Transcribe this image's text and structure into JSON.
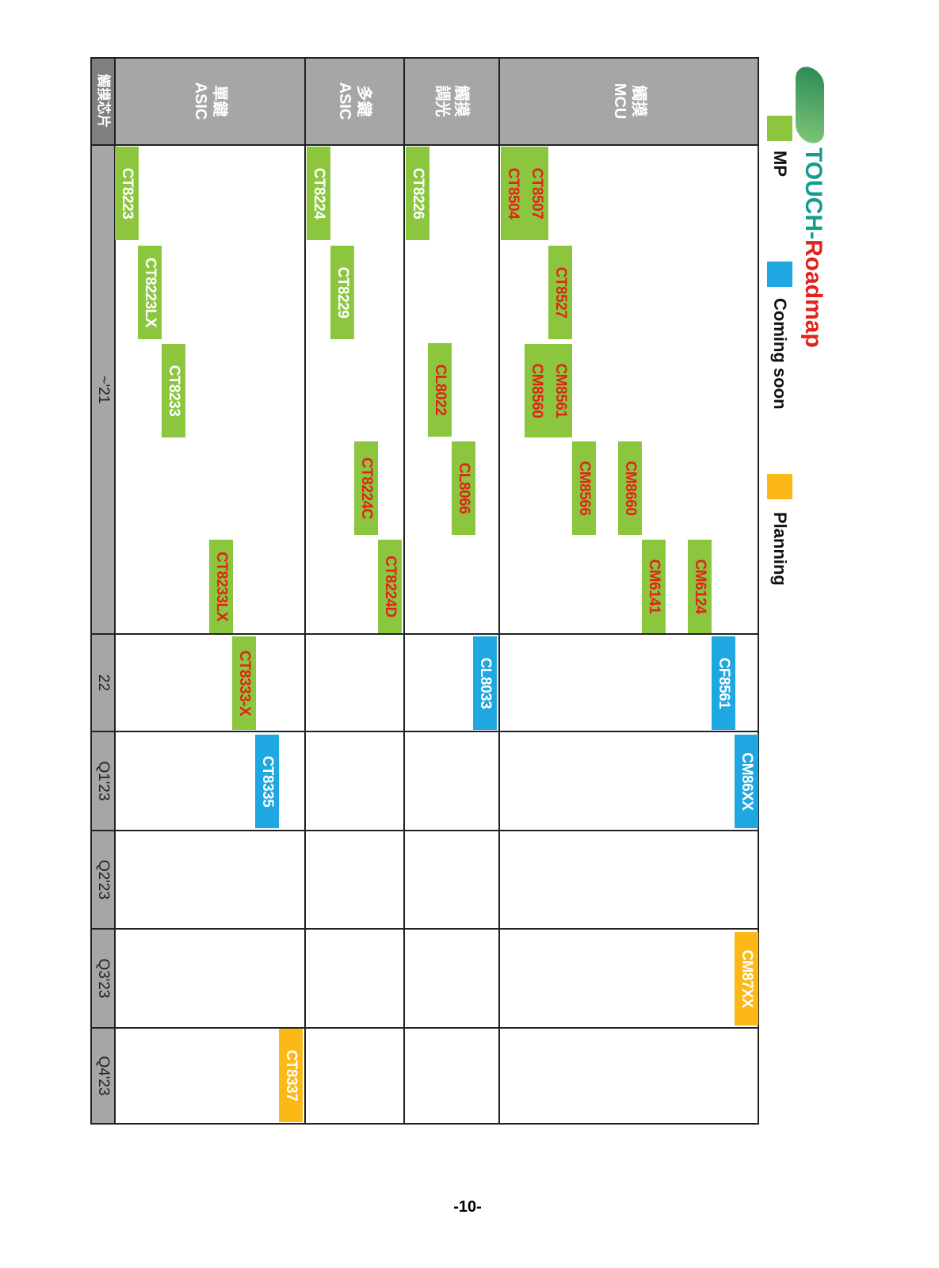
{
  "header": {
    "title_prefix": "TOUCH-",
    "title_suffix": "Roadmap",
    "legend": [
      "MP",
      "Coming soon",
      "Planning"
    ]
  },
  "table": {
    "corner": "觸摸芯片",
    "columns": [
      "~'21",
      "22",
      "Q1'23",
      "Q2'23",
      "Q3'23",
      "Q4'23"
    ],
    "rows": [
      {
        "label": [
          "觸摸",
          "MCU"
        ],
        "items": [
          "CF8561",
          "CM86XX",
          "CM87XX",
          "CM6124",
          "CM6141",
          "CM8660",
          "CM8566",
          "CM8561",
          "CM8560",
          "CT8527",
          "CT8507",
          "CT8504"
        ]
      },
      {
        "label": [
          "觸摸",
          "調光"
        ],
        "items": [
          "CT8226",
          "CL8022",
          "CL8066",
          "CL8033"
        ]
      },
      {
        "label": [
          "多鍵",
          "ASIC"
        ],
        "items": [
          "CT8224",
          "CT8229",
          "CT8224C",
          "CT8224D"
        ]
      },
      {
        "label": [
          "單鍵",
          "ASIC"
        ],
        "items": [
          "CT8223",
          "CT8223LX",
          "CT8233",
          "CT8233LX",
          "CT8333-X",
          "CT8335",
          "CT8337"
        ]
      }
    ]
  },
  "page_number": "-10-"
}
